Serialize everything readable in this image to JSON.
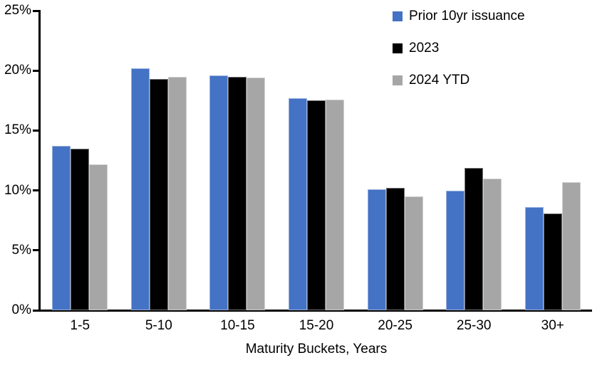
{
  "chart_data": {
    "type": "bar",
    "title": "",
    "categories": [
      "1-5",
      "5-10",
      "10-15",
      "15-20",
      "20-25",
      "25-30",
      "30+"
    ],
    "series": [
      {
        "name": "Prior 10yr issuance",
        "color": "#4472C4",
        "values": [
          13.7,
          20.2,
          19.6,
          17.7,
          10.1,
          10.0,
          8.6
        ]
      },
      {
        "name": "2023",
        "color": "#000000",
        "values": [
          13.5,
          19.3,
          19.5,
          17.5,
          10.2,
          11.9,
          8.1
        ]
      },
      {
        "name": "2024 YTD",
        "color": "#A6A6A6",
        "values": [
          12.2,
          19.5,
          19.4,
          17.6,
          9.5,
          11.0,
          10.7
        ]
      }
    ],
    "xlabel": "Maturity Buckets, Years",
    "ylabel": "",
    "ylim": [
      0,
      25
    ],
    "ytick_step": 5,
    "ytick_labels": [
      "0%",
      "5%",
      "10%",
      "15%",
      "20%",
      "25%"
    ],
    "grid": false,
    "legend_position": "top-right",
    "axis_color": "#000000",
    "background_color": "#FFFFFF"
  }
}
